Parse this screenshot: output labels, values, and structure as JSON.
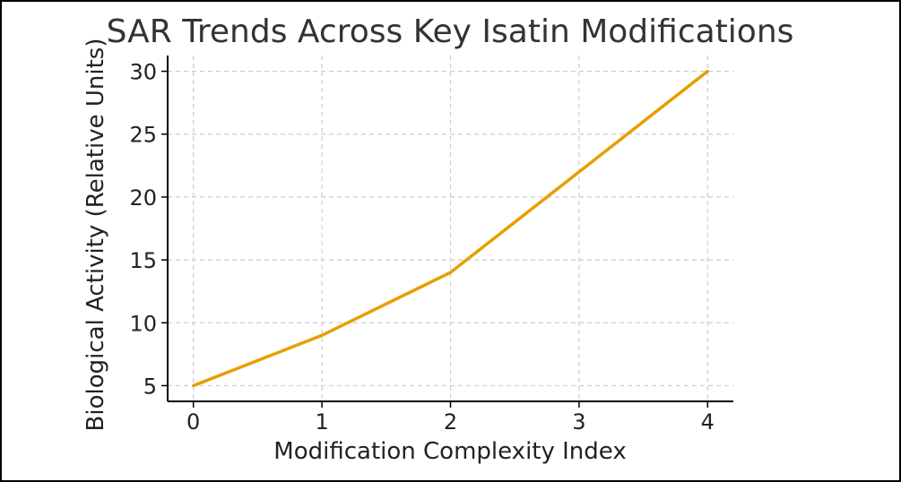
{
  "chart_data": {
    "type": "line",
    "title": "SAR Trends Across Key Isatin Modifications",
    "xlabel": "Modification Complexity Index",
    "ylabel": "Biological Activity (Relative Units)",
    "x": [
      0,
      1,
      2,
      3,
      4
    ],
    "series": [
      {
        "values": [
          5,
          9,
          14,
          22,
          30
        ]
      }
    ],
    "x_ticks": [
      "0",
      "1",
      "2",
      "3",
      "4"
    ],
    "y_ticks": [
      "5",
      "10",
      "15",
      "20",
      "25",
      "30"
    ],
    "xlim": [
      -0.2,
      4.2
    ],
    "ylim": [
      3.75,
      31.25
    ],
    "grid": true,
    "line_color": "#E69F00",
    "grid_color": "#cccccc",
    "axis_color": "#000000"
  }
}
